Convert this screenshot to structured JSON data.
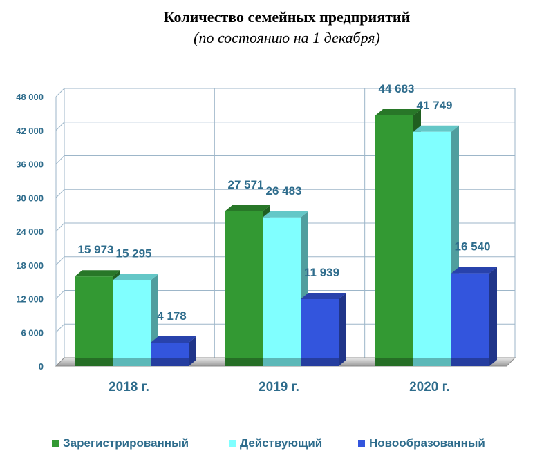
{
  "chart_data": {
    "type": "bar",
    "title": "Количество семейных предприятий",
    "subtitle": "(по состоянию на 1 декабря)",
    "categories": [
      "2018 г.",
      "2019 г.",
      "2020 г."
    ],
    "series": [
      {
        "name": "Зарегистрированный",
        "values": [
          15973,
          27571,
          44683
        ],
        "labels": [
          "15 973",
          "27 571",
          "44 683"
        ],
        "color": "#339933"
      },
      {
        "name": "Действующий",
        "values": [
          15295,
          26483,
          41749
        ],
        "labels": [
          "15 295",
          "26 483",
          "41 749"
        ],
        "color": "#80ffff"
      },
      {
        "name": "Новообразованный",
        "values": [
          4178,
          11939,
          16540
        ],
        "labels": [
          "4 178",
          "11 939",
          "16 540"
        ],
        "color": "#3355dd"
      }
    ],
    "ylim": [
      0,
      48000
    ],
    "yticks": [
      0,
      6000,
      12000,
      18000,
      24000,
      30000,
      36000,
      42000,
      48000
    ],
    "ytick_labels": [
      "0",
      "6 000",
      "12 000",
      "18 000",
      "24 000",
      "30 000",
      "36 000",
      "42 000",
      "48 000"
    ],
    "grid": true,
    "legend_position": "bottom",
    "axis_color": "#2e6c8c"
  }
}
